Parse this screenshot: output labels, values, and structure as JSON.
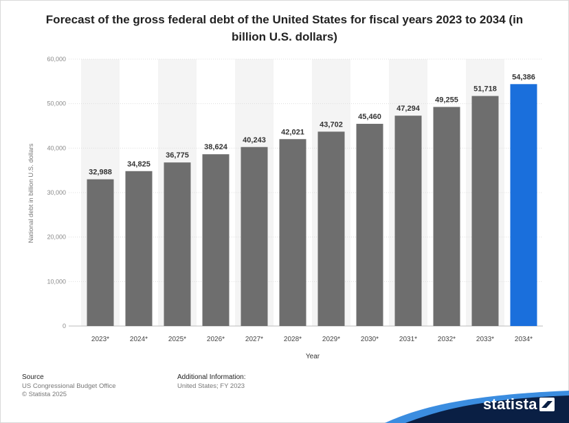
{
  "chart_data": {
    "type": "bar",
    "title": "Forecast of the gross federal debt of the United States for fiscal years 2023 to 2034 (in billion U.S. dollars)",
    "xlabel": "Year",
    "ylabel": "National debt in billion U.S. dollars",
    "categories": [
      "2023*",
      "2024*",
      "2025*",
      "2026*",
      "2027*",
      "2028*",
      "2029*",
      "2030*",
      "2031*",
      "2032*",
      "2033*",
      "2034*"
    ],
    "values": [
      32988,
      34825,
      36775,
      38624,
      40243,
      42021,
      43702,
      45460,
      47294,
      49255,
      51718,
      54386
    ],
    "value_labels": [
      "32,988",
      "34,825",
      "36,775",
      "38,624",
      "40,243",
      "42,021",
      "43,702",
      "45,460",
      "47,294",
      "49,255",
      "51,718",
      "54,386"
    ],
    "ylim": [
      0,
      60000
    ],
    "yticks": [
      0,
      10000,
      20000,
      30000,
      40000,
      50000,
      60000
    ],
    "ytick_labels": [
      "0",
      "10,000",
      "20,000",
      "30,000",
      "40,000",
      "50,000",
      "60,000"
    ],
    "grid": true,
    "legend": "none",
    "colors": {
      "bar": "#6e6e6e",
      "highlight": "#1a6fdc",
      "highlight_index": 11
    }
  },
  "footer": {
    "source_heading": "Source",
    "source_line1": "US Congressional Budget Office",
    "source_line2": "© Statista 2025",
    "info_heading": "Additional Information:",
    "info_line1": "United States; FY 2023"
  },
  "brand": {
    "name": "statista",
    "icon": "statista-logo-icon",
    "color": "#0a1f44"
  }
}
